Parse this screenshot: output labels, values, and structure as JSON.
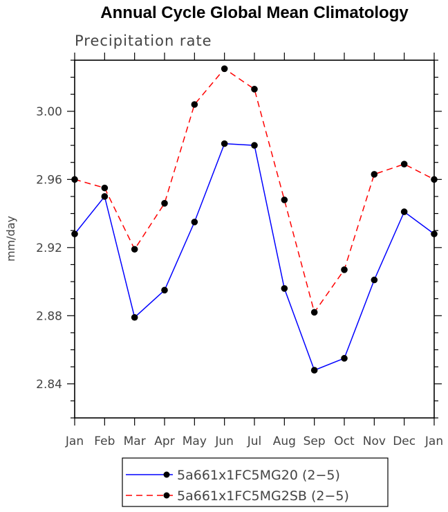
{
  "chart_data": {
    "type": "line",
    "title": "Annual Cycle Global Mean Climatology",
    "subtitle": "Precipitation rate",
    "ylabel": "mm/day",
    "xlabel": "",
    "categories": [
      "Jan",
      "Feb",
      "Mar",
      "Apr",
      "May",
      "Jun",
      "Jul",
      "Aug",
      "Sep",
      "Oct",
      "Nov",
      "Dec",
      "Jan"
    ],
    "ylim": [
      2.82,
      3.03
    ],
    "yticks": [
      2.84,
      2.88,
      2.92,
      2.96,
      3.0
    ],
    "ytick_labels": [
      "2.84",
      "2.88",
      "2.92",
      "2.96",
      "3.00"
    ],
    "grid": false,
    "legend_position": "bottom",
    "series": [
      {
        "name": "5a661x1FC5MG20 (2−5)",
        "color": "#0000ff",
        "dash": "solid",
        "values": [
          2.928,
          2.95,
          2.879,
          2.895,
          2.935,
          2.981,
          2.98,
          2.896,
          2.848,
          2.855,
          2.901,
          2.941,
          2.928
        ]
      },
      {
        "name": "5a661x1FC5MG2SB (2−5)",
        "color": "#ff0000",
        "dash": "dashed",
        "values": [
          2.96,
          2.955,
          2.919,
          2.946,
          3.004,
          3.025,
          3.013,
          2.948,
          2.882,
          2.907,
          2.963,
          2.969,
          2.96
        ]
      }
    ]
  }
}
